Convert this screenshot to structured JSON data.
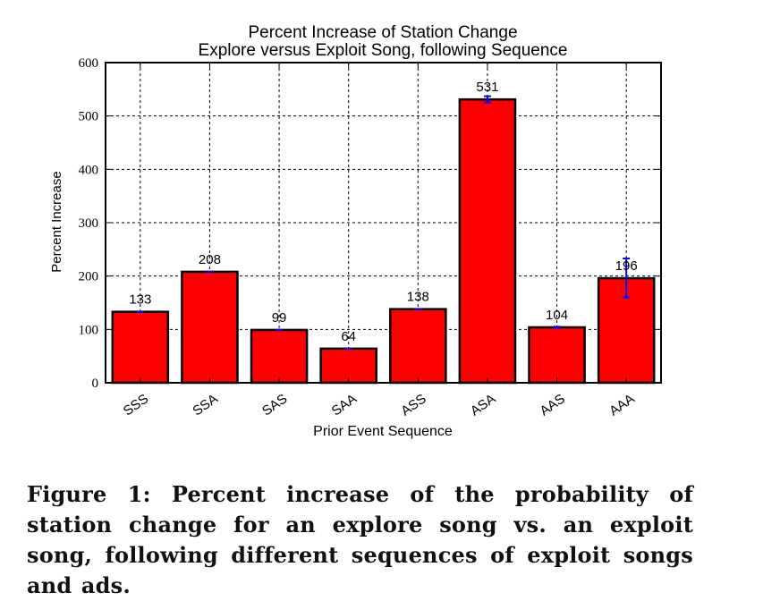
{
  "chart_data": {
    "type": "bar",
    "title": "Percent Increase of Station Change",
    "subtitle": "Explore versus Exploit Song, following Sequence",
    "xlabel": "Prior Event Sequence",
    "ylabel": "Percent Increase",
    "ylim": [
      0,
      600
    ],
    "yticks": [
      "0",
      "100",
      "200",
      "300",
      "400",
      "500",
      "600"
    ],
    "grid": true,
    "categories": [
      "SSS",
      "SSA",
      "SAS",
      "SAA",
      "ASS",
      "ASA",
      "AAS",
      "AAA"
    ],
    "values": [
      133,
      208,
      99,
      64,
      138,
      531,
      104,
      196
    ],
    "value_labels": [
      "133",
      "208",
      "99",
      "64",
      "138",
      "531",
      "104",
      "196"
    ],
    "error_low": [
      133,
      208,
      99,
      64,
      138,
      525,
      103,
      160
    ],
    "error_high": [
      133,
      208,
      99,
      64,
      138,
      537,
      105,
      233
    ],
    "bar_color": "#ff0000",
    "error_color": "#0000ff"
  },
  "caption": "Figure 1: Percent increase of the probability of station change for an explore song vs. an exploit song, following different sequences of exploit songs and ads."
}
